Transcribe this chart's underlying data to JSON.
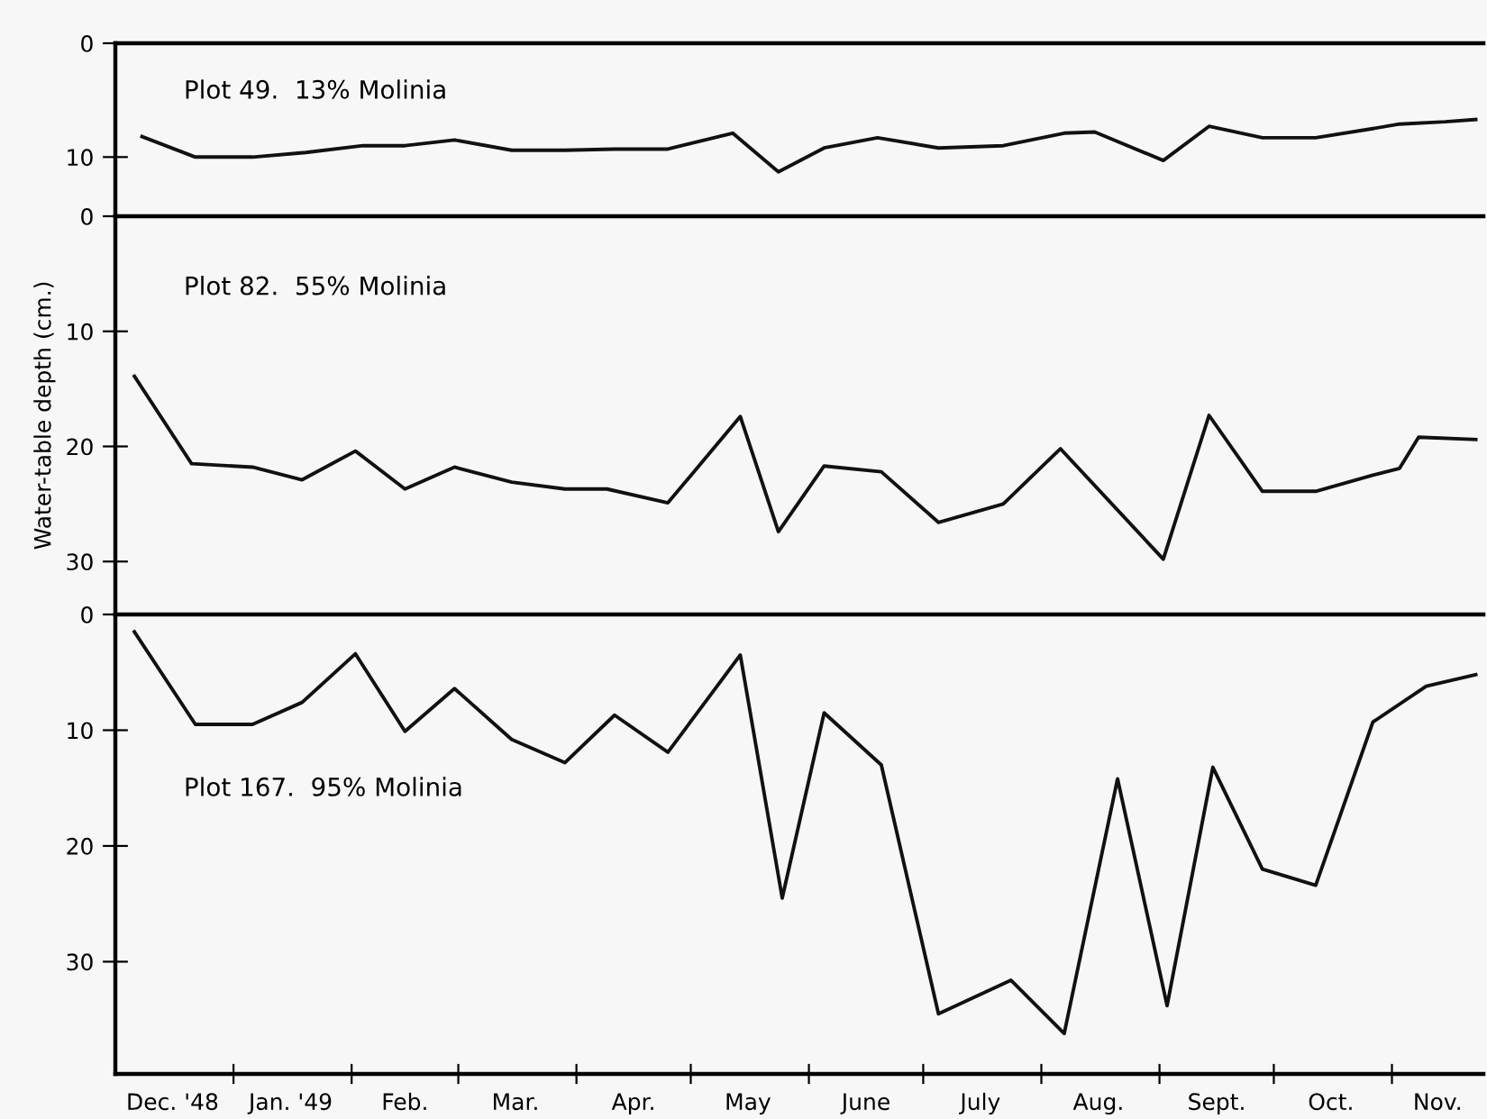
{
  "chart_data": [
    {
      "type": "line",
      "title": "Plot 49.  13% Molinia",
      "xlim": [
        "1948-12-01",
        "1949-11-25"
      ],
      "ylim": [
        15.2,
        0
      ],
      "yticks": [
        0,
        10
      ],
      "tick_labels": "y",
      "grid": false,
      "legend": false,
      "marker": "none",
      "line_style": "solid",
      "series": [
        {
          "color": "#111111",
          "x": [
            "1948-12-08",
            "1948-12-22",
            "1949-01-06",
            "1949-01-20",
            "1949-02-04",
            "1949-02-15",
            "1949-02-28",
            "1949-03-15",
            "1949-03-29",
            "1949-04-11",
            "1949-04-25",
            "1949-05-12",
            "1949-05-24",
            "1949-06-05",
            "1949-06-19",
            "1949-07-05",
            "1949-07-22",
            "1949-08-07",
            "1949-08-15",
            "1949-09-02",
            "1949-09-14",
            "1949-09-28",
            "1949-10-12",
            "1949-10-27",
            "1949-11-03",
            "1949-11-15",
            "1949-11-23"
          ],
          "values": [
            8.2,
            10.0,
            10.0,
            9.6,
            9.0,
            9.0,
            8.5,
            9.4,
            9.4,
            9.3,
            9.3,
            7.9,
            11.3,
            9.2,
            8.3,
            9.2,
            9.0,
            7.9,
            7.8,
            10.3,
            7.3,
            8.3,
            8.3,
            7.5,
            7.1,
            6.9,
            6.7
          ]
        }
      ]
    },
    {
      "type": "line",
      "title": "Plot 82.  55% Molinia",
      "ylabel": "Water-table depth (cm.)",
      "xlim": [
        "1948-12-01",
        "1949-11-25"
      ],
      "ylim": [
        34.6,
        0
      ],
      "yticks": [
        0,
        10,
        20,
        30
      ],
      "tick_labels": "y",
      "grid": false,
      "legend": false,
      "marker": "none",
      "line_style": "solid",
      "series": [
        {
          "color": "#111111",
          "x": [
            "1948-12-06",
            "1948-12-21",
            "1949-01-06",
            "1949-01-19",
            "1949-02-02",
            "1949-02-15",
            "1949-02-28",
            "1949-03-15",
            "1949-03-29",
            "1949-04-09",
            "1949-04-25",
            "1949-05-14",
            "1949-05-24",
            "1949-06-05",
            "1949-06-20",
            "1949-07-05",
            "1949-07-22",
            "1949-08-06",
            "1949-09-02",
            "1949-09-14",
            "1949-09-28",
            "1949-10-12",
            "1949-10-27",
            "1949-11-03",
            "1949-11-08",
            "1949-11-23"
          ],
          "values": [
            13.9,
            21.5,
            21.8,
            22.9,
            20.4,
            23.7,
            21.8,
            23.1,
            23.7,
            23.7,
            24.9,
            17.4,
            27.4,
            21.7,
            22.2,
            26.6,
            25.0,
            20.2,
            29.8,
            17.3,
            23.9,
            23.9,
            22.5,
            21.9,
            19.2,
            19.4
          ]
        }
      ]
    },
    {
      "type": "line",
      "title": "Plot 167.  95% Molinia",
      "xlim": [
        "1948-12-01",
        "1949-11-25"
      ],
      "ylim": [
        39.7,
        0
      ],
      "yticks": [
        0,
        10,
        20,
        30
      ],
      "grid": false,
      "legend": false,
      "marker": "none",
      "line_style": "solid",
      "xticks": [
        {
          "value": "1948-12-16",
          "label": "Dec. '48"
        },
        {
          "value": "1949-01-01",
          "label": null
        },
        {
          "value": "1949-01-16",
          "label": "Jan. '49"
        },
        {
          "value": "1949-02-01",
          "label": null
        },
        {
          "value": "1949-02-15",
          "label": "Feb."
        },
        {
          "value": "1949-03-01",
          "label": null
        },
        {
          "value": "1949-03-16",
          "label": "Mar."
        },
        {
          "value": "1949-04-01",
          "label": null
        },
        {
          "value": "1949-04-16",
          "label": "Apr."
        },
        {
          "value": "1949-05-01",
          "label": null
        },
        {
          "value": "1949-05-16",
          "label": "May"
        },
        {
          "value": "1949-06-01",
          "label": null
        },
        {
          "value": "1949-06-16",
          "label": "June"
        },
        {
          "value": "1949-07-01",
          "label": null
        },
        {
          "value": "1949-07-16",
          "label": "July"
        },
        {
          "value": "1949-08-01",
          "label": null
        },
        {
          "value": "1949-08-16",
          "label": "Aug."
        },
        {
          "value": "1949-09-01",
          "label": null
        },
        {
          "value": "1949-09-16",
          "label": "Sept."
        },
        {
          "value": "1949-10-01",
          "label": null
        },
        {
          "value": "1949-10-16",
          "label": "Oct."
        },
        {
          "value": "1949-11-01",
          "label": null
        },
        {
          "value": "1949-11-13",
          "label": "Nov."
        }
      ],
      "series": [
        {
          "color": "#111111",
          "x": [
            "1948-12-06",
            "1948-12-22",
            "1949-01-06",
            "1949-01-19",
            "1949-02-02",
            "1949-02-15",
            "1949-02-28",
            "1949-03-15",
            "1949-03-29",
            "1949-04-11",
            "1949-04-25",
            "1949-05-14",
            "1949-05-25",
            "1949-06-05",
            "1949-06-20",
            "1949-07-05",
            "1949-07-24",
            "1949-08-07",
            "1949-08-21",
            "1949-09-03",
            "1949-09-15",
            "1949-09-28",
            "1949-10-12",
            "1949-10-27",
            "1949-11-10",
            "1949-11-23"
          ],
          "values": [
            1.5,
            9.5,
            9.5,
            7.6,
            3.4,
            10.1,
            6.4,
            10.8,
            12.8,
            8.7,
            11.9,
            3.5,
            24.5,
            8.5,
            13.0,
            34.5,
            31.6,
            36.2,
            14.2,
            33.8,
            13.2,
            22.0,
            23.4,
            9.3,
            6.2,
            5.2
          ]
        }
      ]
    }
  ]
}
